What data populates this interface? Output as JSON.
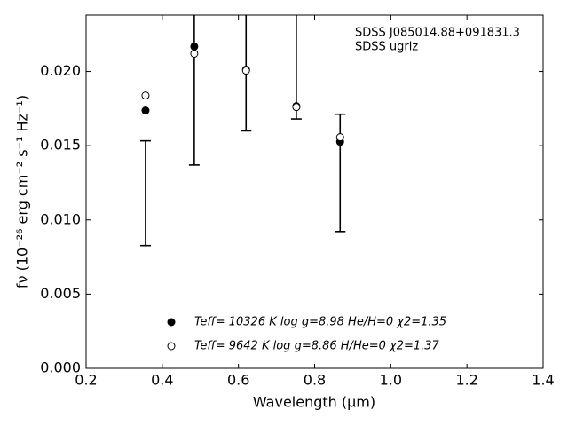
{
  "chart_data": {
    "type": "scatter",
    "annotations": [
      "SDSS J085014.88+091831.3",
      "SDSS ugriz"
    ],
    "xlabel": "Wavelength (μm)",
    "ylabel": "fν (10⁻²⁶ erg cm⁻² s⁻¹ Hz⁻¹)",
    "xlim": [
      0.2,
      1.4
    ],
    "ylim": [
      0,
      0.0238
    ],
    "xticks": [
      0.2,
      0.4,
      0.6,
      0.8,
      {
        "value": 1.0,
        "label": "1.0"
      },
      1.2,
      1.4
    ],
    "yticks": [
      {
        "value": 0,
        "label": "0.000"
      },
      {
        "value": 0.005,
        "label": "0.005"
      },
      {
        "value": 0.01,
        "label": "0.010"
      },
      {
        "value": 0.015,
        "label": "0.015"
      },
      {
        "value": 0.02,
        "label": "0.020"
      }
    ],
    "observed": {
      "x": [
        0.356,
        0.484,
        0.62,
        0.752,
        0.867
      ],
      "values": [
        0.0118,
        0.02,
        0.0215,
        0.0225,
        0.01317
      ],
      "errors": [
        0.00353,
        0.0063,
        0.0055,
        0.0057,
        0.00395
      ],
      "color": "#000000"
    },
    "series": [
      {
        "name": "Teff= 10326 K  log g=8.98  He/H=0  χ2=1.35",
        "marker": "filled",
        "color": "#000000",
        "x": [
          0.356,
          0.484,
          0.62,
          0.752,
          0.867
        ],
        "values": [
          0.01737,
          0.02168,
          0.02012,
          0.01766,
          0.01527
        ]
      },
      {
        "name": "Teff=  9642 K  log g=8.86  H/He=0  χ2=1.37",
        "marker": "open",
        "color": "#000000",
        "x": [
          0.356,
          0.484,
          0.62,
          0.752,
          0.867
        ],
        "values": [
          0.01838,
          0.0212,
          0.02006,
          0.0176,
          0.01557
        ]
      }
    ]
  }
}
